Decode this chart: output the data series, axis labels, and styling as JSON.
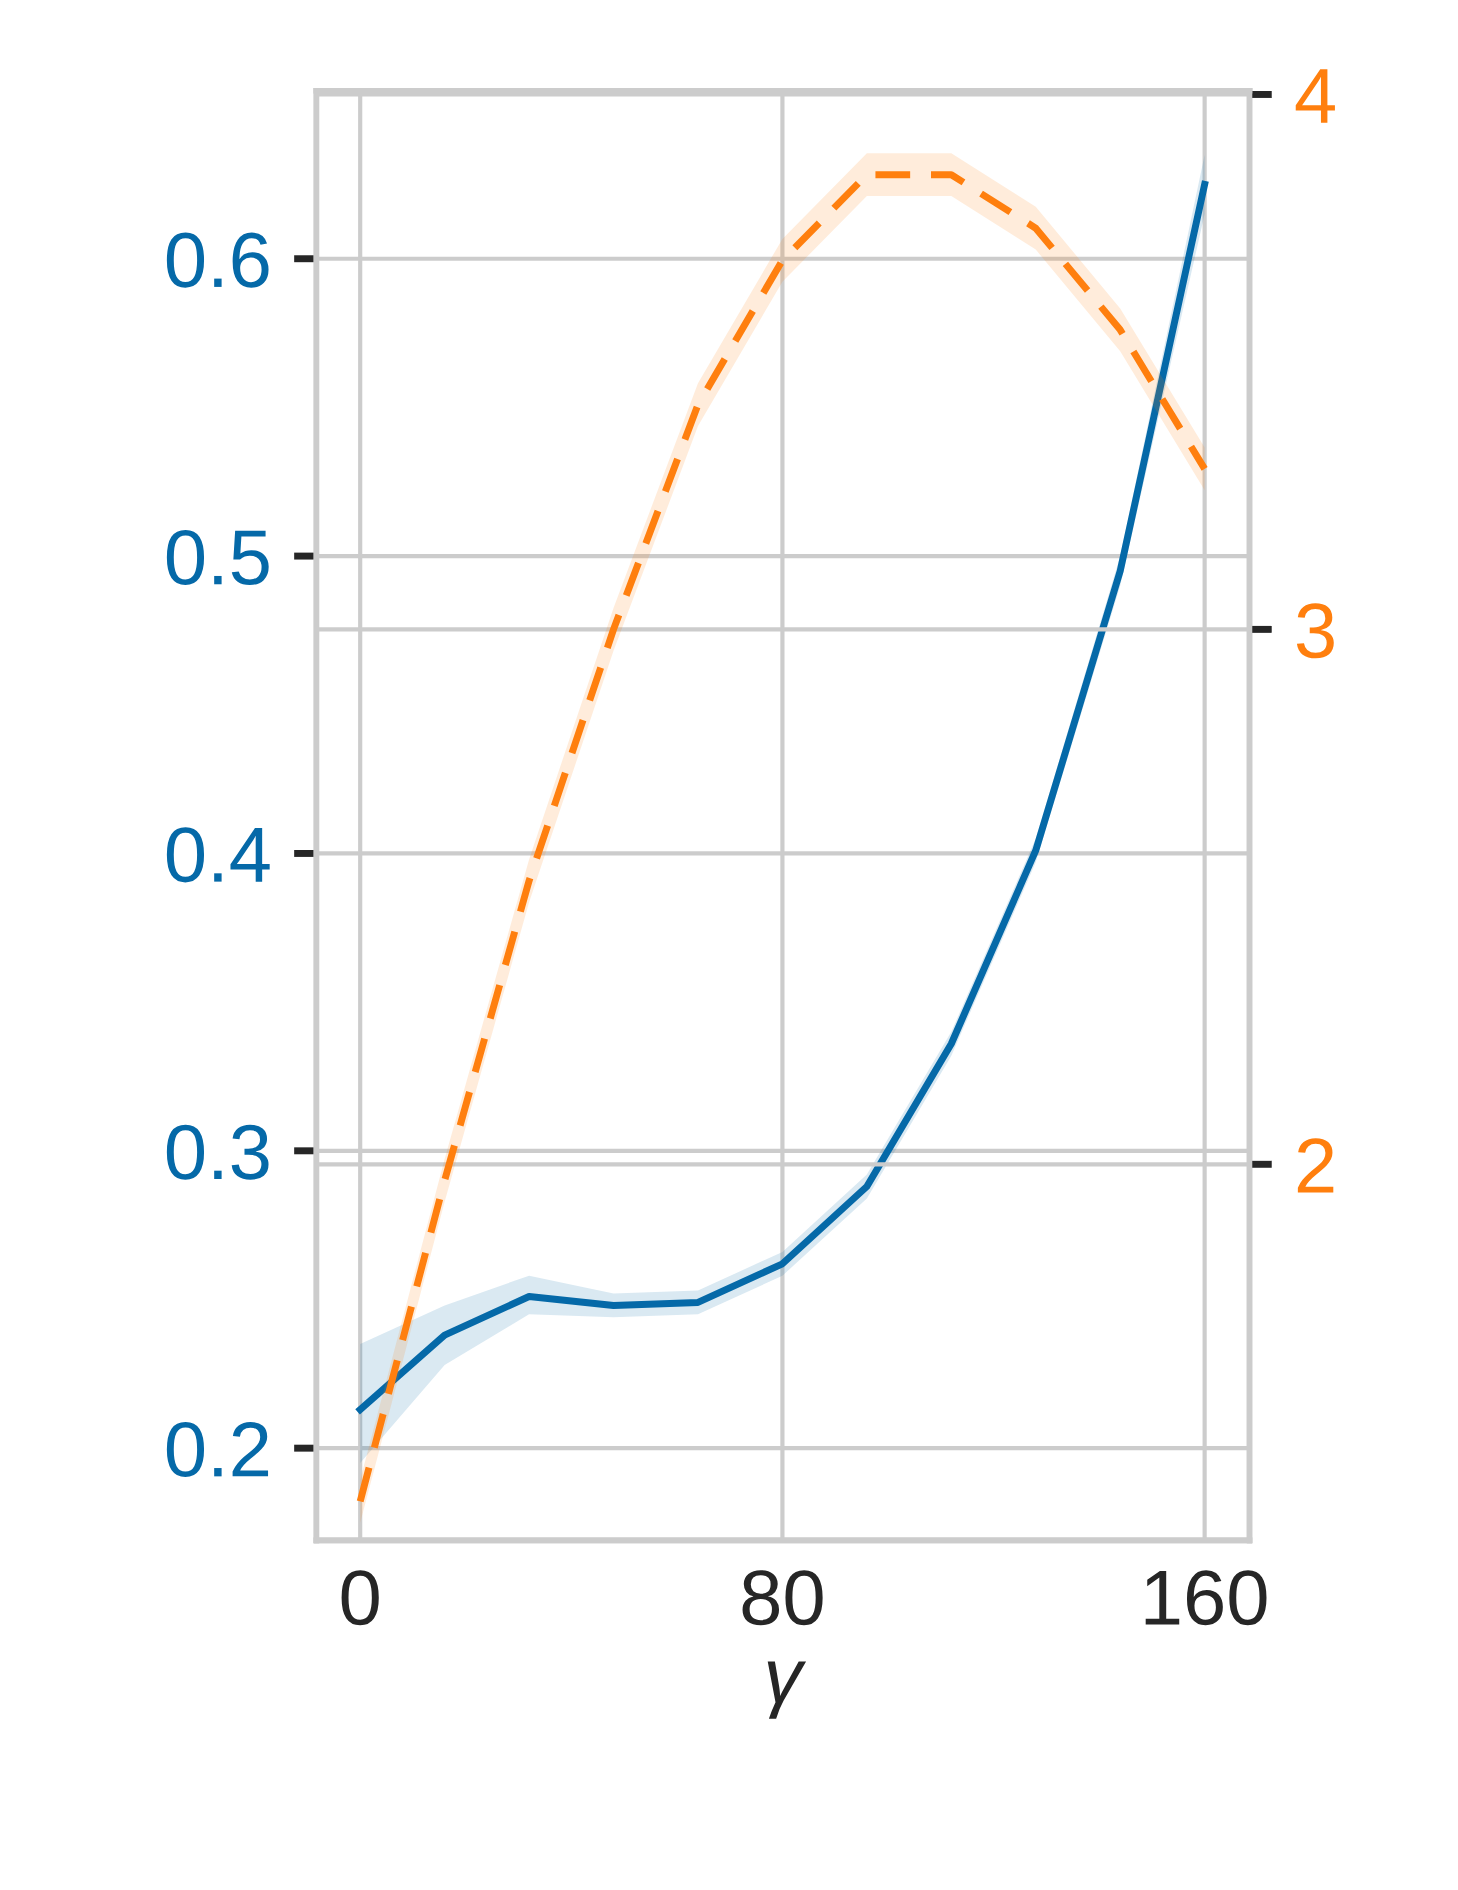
{
  "chart_data": {
    "type": "line",
    "xlabel": "γ",
    "x": [
      0,
      16,
      32,
      48,
      64,
      80,
      96,
      112,
      128,
      144,
      160
    ],
    "series": [
      {
        "color": "#0569a8",
        "line_style": "solid",
        "values": [
          0.213,
          0.238,
          0.251,
          0.248,
          0.249,
          0.262,
          0.288,
          0.336,
          0.401,
          0.495,
          0.625
        ],
        "lower": [
          0.195,
          0.228,
          0.245,
          0.244,
          0.245,
          0.258,
          0.284,
          0.332,
          0.397,
          0.49,
          0.615
        ],
        "upper": [
          0.235,
          0.248,
          0.258,
          0.252,
          0.253,
          0.266,
          0.292,
          0.34,
          0.405,
          0.5,
          0.635
        ]
      },
      {
        "color": "#ff7f0e",
        "line_style": "dashed",
        "axis": "y2",
        "values": [
          1.37,
          1.97,
          2.53,
          3.0,
          3.42,
          3.69,
          3.85,
          3.85,
          3.75,
          3.56,
          3.3
        ],
        "lower": [
          1.33,
          1.93,
          2.49,
          2.96,
          3.38,
          3.65,
          3.81,
          3.81,
          3.71,
          3.52,
          3.26
        ],
        "upper": [
          1.41,
          2.01,
          2.57,
          3.04,
          3.46,
          3.73,
          3.89,
          3.89,
          3.79,
          3.6,
          3.34
        ]
      }
    ],
    "xlim": [
      -8.3,
      168.5
    ],
    "xticks": [
      0,
      80,
      160
    ],
    "ylim": [
      0.169,
      0.6565
    ],
    "yticks": [
      0.2,
      0.3,
      0.4,
      0.5,
      0.6
    ],
    "y2lim": [
      1.297,
      4.007
    ],
    "y2ticks": [
      2,
      3,
      4
    ],
    "grid": true
  }
}
